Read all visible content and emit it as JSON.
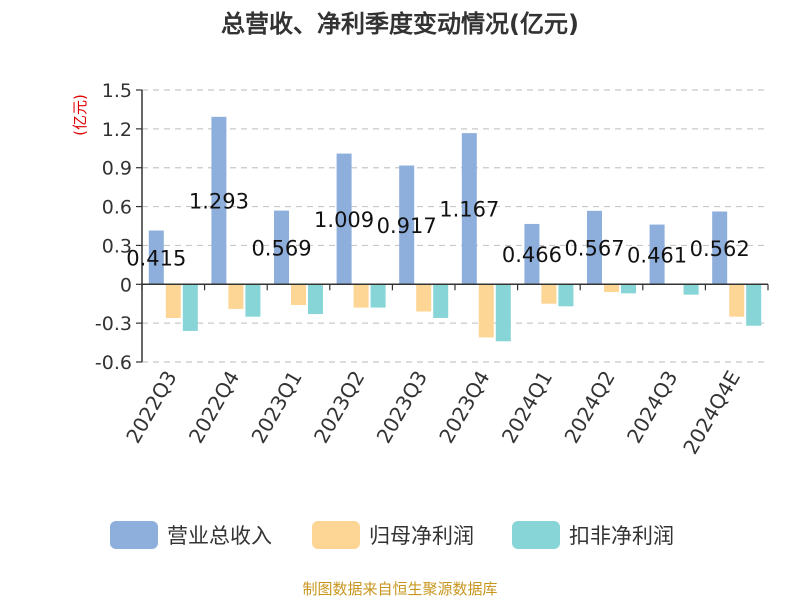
{
  "chart_data": {
    "type": "bar",
    "title": "总营收、净利季度变动情况(亿元)",
    "ylabel": "(亿元)",
    "xlabel": "",
    "ylim": [
      -0.6,
      1.5
    ],
    "yticks": [
      1.5,
      1.2,
      0.9,
      0.6,
      0.3,
      0,
      -0.3,
      -0.6
    ],
    "ytick_labels": [
      "1.5",
      "1.2",
      "0.9",
      "0.6",
      "0.3",
      "0",
      "-0.3",
      "-0.6"
    ],
    "grid": true,
    "legend_position": "bottom",
    "categories": [
      "2022Q3",
      "2022Q4",
      "2023Q1",
      "2023Q2",
      "2023Q3",
      "2023Q4",
      "2024Q1",
      "2024Q2",
      "2024Q3",
      "2024Q4E"
    ],
    "series": [
      {
        "name": "营业总收入",
        "color": "#8eafdc",
        "values": [
          0.415,
          1.293,
          0.569,
          1.009,
          0.917,
          1.167,
          0.466,
          0.567,
          0.461,
          0.562
        ],
        "labels": [
          "0.415",
          "1.293",
          "0.569",
          "1.009",
          "0.917",
          "1.167",
          "0.466",
          "0.567",
          "0.461",
          "0.562"
        ]
      },
      {
        "name": "归母净利润",
        "color": "#fdd595",
        "values": [
          -0.26,
          -0.19,
          -0.16,
          -0.18,
          -0.21,
          -0.41,
          -0.15,
          -0.06,
          0.0,
          -0.25
        ]
      },
      {
        "name": "扣非净利润",
        "color": "#87d5d6",
        "values": [
          -0.36,
          -0.25,
          -0.23,
          -0.18,
          -0.26,
          -0.44,
          -0.17,
          -0.07,
          -0.08,
          -0.32
        ]
      }
    ]
  },
  "source": "制图数据来自恒生聚源数据库"
}
